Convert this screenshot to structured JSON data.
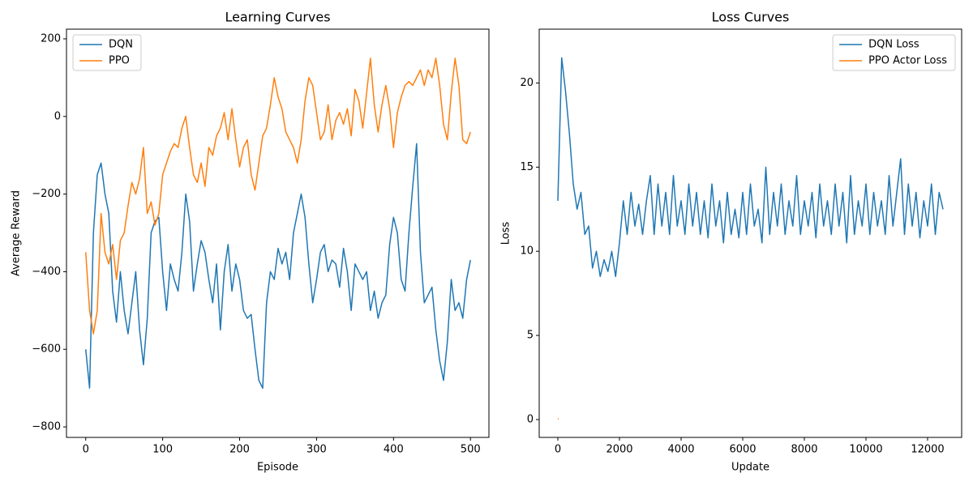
{
  "chart_data": [
    {
      "type": "line",
      "title": "Learning Curves",
      "xlabel": "Episode",
      "ylabel": "Average Reward",
      "xlim": [
        -25,
        524
      ],
      "ylim": [
        -827,
        225
      ],
      "xticks": [
        0,
        100,
        200,
        300,
        400,
        500
      ],
      "yticks": [
        {
          "value": -800,
          "label": "−800"
        },
        {
          "value": -600,
          "label": "−600"
        },
        {
          "value": -400,
          "label": "−400"
        },
        {
          "value": -200,
          "label": "−200"
        },
        0,
        200
      ],
      "legend": "upper left",
      "x": [
        0,
        5,
        10,
        15,
        20,
        25,
        30,
        35,
        40,
        45,
        50,
        55,
        60,
        65,
        70,
        75,
        80,
        85,
        90,
        95,
        100,
        105,
        110,
        115,
        120,
        125,
        130,
        135,
        140,
        145,
        150,
        155,
        160,
        165,
        170,
        175,
        180,
        185,
        190,
        195,
        200,
        205,
        210,
        215,
        220,
        225,
        230,
        235,
        240,
        245,
        250,
        255,
        260,
        265,
        270,
        275,
        280,
        285,
        290,
        295,
        300,
        305,
        310,
        315,
        320,
        325,
        330,
        335,
        340,
        345,
        350,
        355,
        360,
        365,
        370,
        375,
        380,
        385,
        390,
        395,
        400,
        405,
        410,
        415,
        420,
        425,
        430,
        435,
        440,
        445,
        450,
        455,
        460,
        465,
        470,
        475,
        480,
        485,
        490,
        495,
        500
      ],
      "series": [
        {
          "name": "DQN",
          "color": "#1f77b4",
          "values": [
            -600,
            -700,
            -300,
            -150,
            -120,
            -200,
            -250,
            -450,
            -530,
            -400,
            -500,
            -560,
            -480,
            -400,
            -550,
            -640,
            -520,
            -300,
            -270,
            -260,
            -400,
            -500,
            -380,
            -420,
            -450,
            -350,
            -200,
            -270,
            -450,
            -380,
            -320,
            -350,
            -420,
            -480,
            -380,
            -550,
            -400,
            -330,
            -450,
            -380,
            -420,
            -500,
            -520,
            -510,
            -600,
            -680,
            -700,
            -480,
            -400,
            -420,
            -340,
            -380,
            -350,
            -420,
            -300,
            -250,
            -200,
            -260,
            -380,
            -480,
            -420,
            -350,
            -330,
            -400,
            -370,
            -380,
            -440,
            -340,
            -400,
            -500,
            -380,
            -400,
            -420,
            -400,
            -500,
            -450,
            -520,
            -480,
            -460,
            -330,
            -260,
            -300,
            -420,
            -450,
            -300,
            -180,
            -70,
            -350,
            -480,
            -460,
            -440,
            -550,
            -630,
            -680,
            -580,
            -420,
            -500,
            -480,
            -520,
            -420,
            -370
          ]
        },
        {
          "name": "PPO",
          "color": "#ff7f0e",
          "values": [
            -350,
            -500,
            -560,
            -500,
            -250,
            -350,
            -380,
            -330,
            -420,
            -320,
            -300,
            -230,
            -170,
            -200,
            -160,
            -80,
            -250,
            -220,
            -280,
            -250,
            -150,
            -120,
            -90,
            -70,
            -80,
            -30,
            0,
            -80,
            -150,
            -170,
            -120,
            -180,
            -80,
            -100,
            -50,
            -30,
            10,
            -60,
            20,
            -60,
            -130,
            -80,
            -60,
            -150,
            -190,
            -120,
            -50,
            -30,
            30,
            100,
            50,
            20,
            -40,
            -60,
            -80,
            -120,
            -60,
            40,
            100,
            80,
            10,
            -60,
            -40,
            30,
            -60,
            -10,
            10,
            -20,
            20,
            -50,
            70,
            40,
            -30,
            60,
            150,
            30,
            -40,
            30,
            80,
            20,
            -80,
            10,
            50,
            80,
            90,
            80,
            100,
            120,
            80,
            120,
            100,
            150,
            80,
            -20,
            -60,
            60,
            150,
            80,
            -60,
            -70,
            -40
          ]
        }
      ]
    },
    {
      "type": "line",
      "title": "Loss Curves",
      "xlabel": "Update",
      "ylabel": "Loss",
      "xlim": [
        -605,
        13105
      ],
      "ylim": [
        -1.06,
        23.2
      ],
      "xticks": [
        0,
        2000,
        4000,
        6000,
        8000,
        10000,
        12000
      ],
      "yticks": [
        0,
        5,
        10,
        15,
        20
      ],
      "legend": "upper right",
      "series": [
        {
          "name": "DQN Loss",
          "color": "#1f77b4",
          "x": [
            0,
            125,
            250,
            375,
            500,
            625,
            750,
            875,
            1000,
            1125,
            1250,
            1375,
            1500,
            1625,
            1750,
            1875,
            2000,
            2125,
            2250,
            2375,
            2500,
            2625,
            2750,
            2875,
            3000,
            3125,
            3250,
            3375,
            3500,
            3625,
            3750,
            3875,
            4000,
            4125,
            4250,
            4375,
            4500,
            4625,
            4750,
            4875,
            5000,
            5125,
            5250,
            5375,
            5500,
            5625,
            5750,
            5875,
            6000,
            6125,
            6250,
            6375,
            6500,
            6625,
            6750,
            6875,
            7000,
            7125,
            7250,
            7375,
            7500,
            7625,
            7750,
            7875,
            8000,
            8125,
            8250,
            8375,
            8500,
            8625,
            8750,
            8875,
            9000,
            9125,
            9250,
            9375,
            9500,
            9625,
            9750,
            9875,
            10000,
            10125,
            10250,
            10375,
            10500,
            10625,
            10750,
            10875,
            11000,
            11125,
            11250,
            11375,
            11500,
            11625,
            11750,
            11875,
            12000,
            12125,
            12250,
            12375,
            12500
          ],
          "values": [
            13,
            21.5,
            19.5,
            17,
            14,
            12.5,
            13.5,
            11,
            11.5,
            9,
            10,
            8.5,
            9.5,
            8.8,
            10,
            8.5,
            10.5,
            13,
            11,
            13.5,
            11.5,
            12.8,
            11,
            13,
            14.5,
            11,
            14,
            11.5,
            13.5,
            11,
            14.5,
            11.5,
            13,
            11,
            14,
            11.5,
            13.5,
            11,
            13,
            10.8,
            14,
            11.5,
            13,
            10.5,
            13.5,
            11,
            12.5,
            10.8,
            13.5,
            11,
            14,
            11.5,
            12.5,
            10.5,
            15,
            11,
            13.5,
            11.5,
            14,
            11,
            13,
            11.5,
            14.5,
            11,
            13,
            11.5,
            13.5,
            10.8,
            14,
            11.5,
            13,
            11,
            14,
            11.5,
            13.5,
            10.5,
            14.5,
            11,
            13,
            11.5,
            14,
            11,
            13.5,
            11.5,
            13,
            11,
            14.5,
            11.5,
            13.5,
            15.5,
            11,
            14,
            11.5,
            13.5,
            10.8,
            13,
            11.5,
            14,
            11,
            13.5,
            12.5
          ]
        },
        {
          "name": "PPO Actor Loss",
          "color": "#ff7f0e",
          "x": [
            0,
            25
          ],
          "values": [
            0.05,
            0.05
          ]
        }
      ]
    }
  ]
}
